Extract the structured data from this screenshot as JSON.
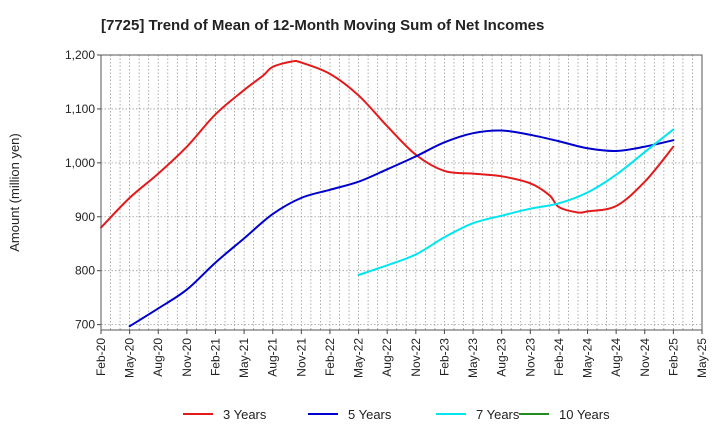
{
  "chart_data": {
    "type": "line",
    "title": "[7725]  Trend of Mean of 12-Month Moving Sum of Net Incomes",
    "xlabel": "",
    "ylabel": "Amount (million yen)",
    "ylim": [
      690,
      1200
    ],
    "yticks": [
      700,
      800,
      900,
      1000,
      1100,
      1200
    ],
    "ytick_labels": [
      "700",
      "800",
      "900",
      "1,000",
      "1,100",
      "1,200"
    ],
    "xlim": [
      "Feb-20",
      "May-25"
    ],
    "xtick_labels": [
      "Feb-20",
      "May-20",
      "Aug-20",
      "Nov-20",
      "Feb-21",
      "May-21",
      "Aug-21",
      "Nov-21",
      "Feb-22",
      "May-22",
      "Aug-22",
      "Nov-22",
      "Feb-23",
      "May-23",
      "Aug-23",
      "Nov-23",
      "Feb-24",
      "May-24",
      "Aug-24",
      "Nov-24",
      "Feb-25",
      "May-25"
    ],
    "grid": true,
    "legend_position": "bottom",
    "series": [
      {
        "name": "3 Years",
        "color": "#e31a1c",
        "x": [
          "Feb-20",
          "May-20",
          "Aug-20",
          "Nov-20",
          "Feb-21",
          "May-21",
          "Jul-21",
          "Aug-21",
          "Oct-21",
          "Nov-21",
          "Feb-22",
          "May-22",
          "Aug-22",
          "Nov-22",
          "Feb-23",
          "May-23",
          "Aug-23",
          "Nov-23",
          "Jan-24",
          "Feb-24",
          "Apr-24",
          "May-24",
          "Aug-24",
          "Nov-24",
          "Feb-25"
        ],
        "values": [
          880,
          935,
          980,
          1030,
          1090,
          1135,
          1162,
          1178,
          1188,
          1186,
          1165,
          1125,
          1068,
          1015,
          985,
          980,
          975,
          962,
          940,
          918,
          908,
          910,
          920,
          965,
          1030
        ]
      },
      {
        "name": "5 Years",
        "color": "#0000cc",
        "x": [
          "May-20",
          "Aug-20",
          "Nov-20",
          "Feb-21",
          "May-21",
          "Aug-21",
          "Nov-21",
          "Feb-22",
          "May-22",
          "Aug-22",
          "Nov-22",
          "Feb-23",
          "May-23",
          "Aug-23",
          "Nov-23",
          "Feb-24",
          "May-24",
          "Aug-24",
          "Nov-24",
          "Feb-25"
        ],
        "values": [
          697,
          730,
          765,
          815,
          860,
          905,
          935,
          950,
          965,
          988,
          1012,
          1038,
          1055,
          1060,
          1052,
          1040,
          1027,
          1022,
          1030,
          1042
        ]
      },
      {
        "name": "7 Years",
        "color": "#00e5ee",
        "x": [
          "May-22",
          "Aug-22",
          "Nov-22",
          "Feb-23",
          "May-23",
          "Aug-23",
          "Nov-23",
          "Feb-24",
          "May-24",
          "Aug-24",
          "Nov-24",
          "Feb-25"
        ],
        "values": [
          792,
          810,
          830,
          862,
          888,
          902,
          915,
          925,
          945,
          978,
          1020,
          1062
        ]
      },
      {
        "name": "10 Years",
        "color": "#228b22",
        "x": [],
        "values": []
      }
    ]
  }
}
